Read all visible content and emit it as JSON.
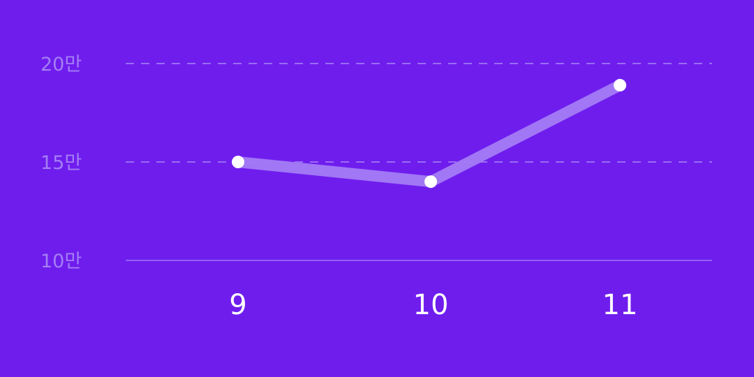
{
  "colors": {
    "background": "#6f1ded",
    "grid": "#9a6cf4",
    "axis": "#8f5ff6",
    "line": "#a47cf6",
    "point": "#ffffff",
    "y_tick_text": "#a47ff5",
    "x_tick_text": "#ffffff"
  },
  "chart_data": {
    "type": "line",
    "title": "",
    "xlabel": "",
    "ylabel": "",
    "categories": [
      "9",
      "10",
      "11"
    ],
    "series": [
      {
        "name": "",
        "values": [
          150000,
          140000,
          189000
        ]
      }
    ],
    "ylim": [
      100000,
      200000
    ],
    "y_ticks": [
      {
        "value": 100000,
        "label": "10만",
        "grid": "solid"
      },
      {
        "value": 150000,
        "label": "15만",
        "grid": "dashed"
      },
      {
        "value": 200000,
        "label": "20만",
        "grid": "dashed"
      }
    ],
    "legend": "none"
  }
}
